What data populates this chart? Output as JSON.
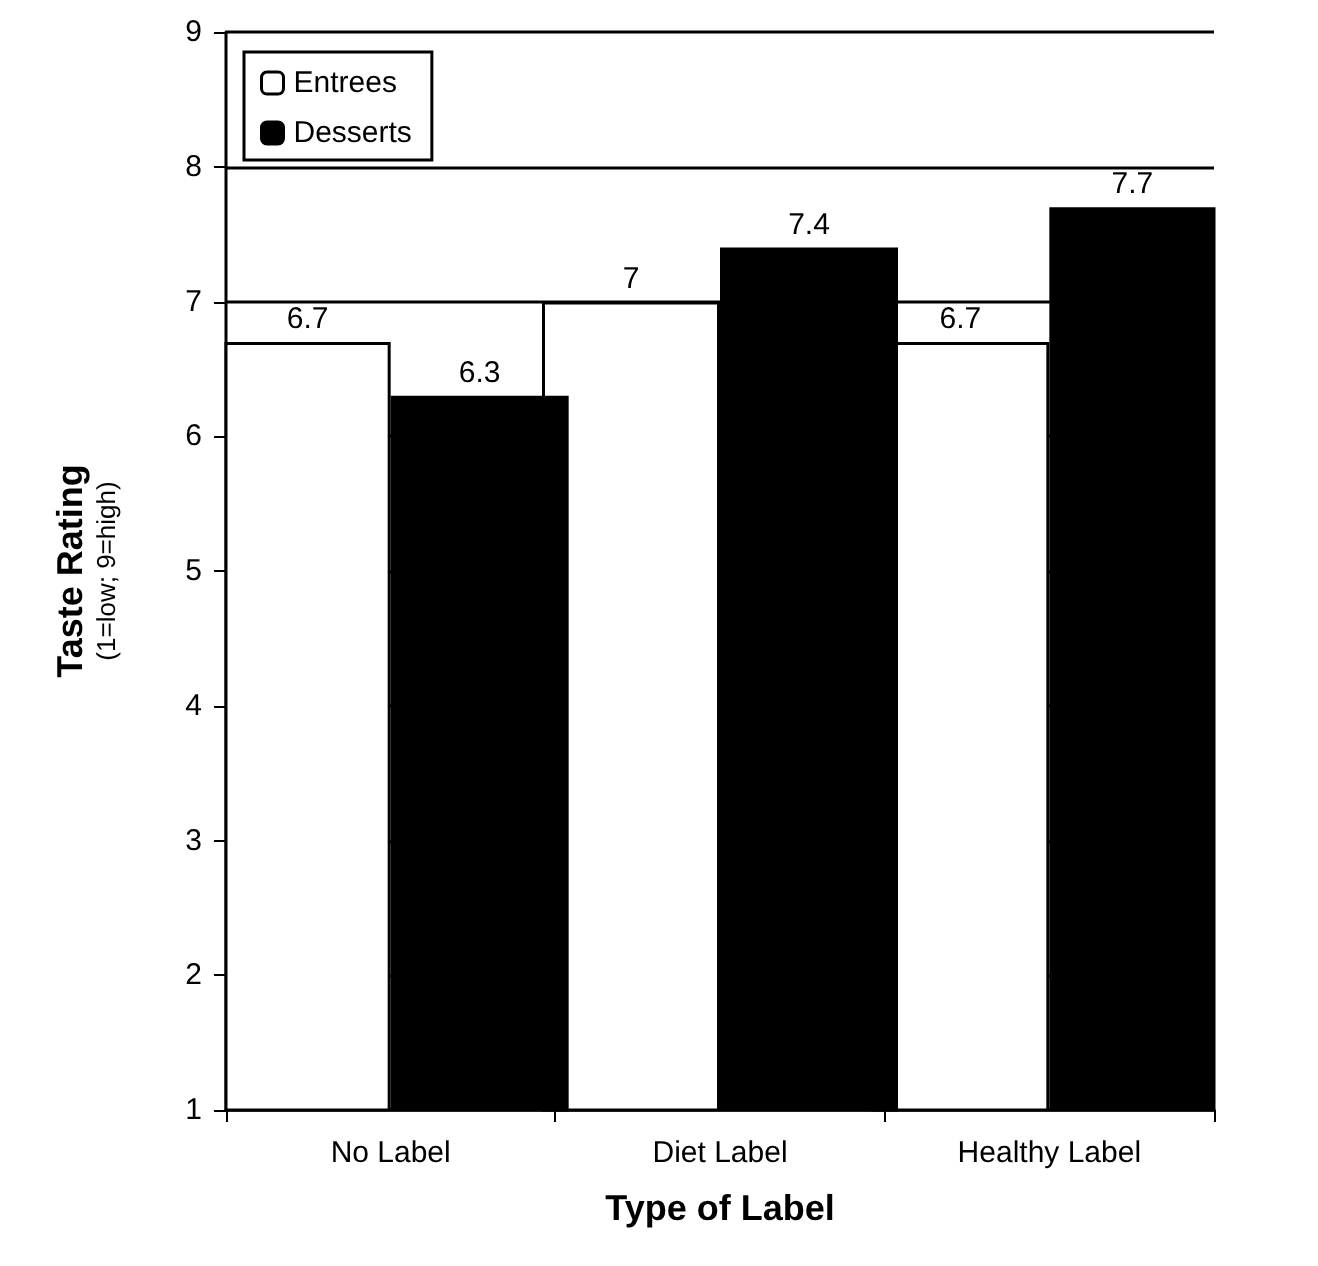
{
  "chart_data": {
    "type": "bar",
    "xlabel": "Type of Label",
    "ylabel": "Taste Rating",
    "annotations": [
      "(1=low; 9=high)"
    ],
    "categories": [
      "No Label",
      "Diet Label",
      "Healthy Label"
    ],
    "series": [
      {
        "name": "Entrees",
        "color": "#ffffff",
        "values": [
          6.7,
          7,
          6.7
        ]
      },
      {
        "name": "Desserts",
        "color": "#000000",
        "values": [
          6.3,
          7.4,
          7.7
        ]
      }
    ],
    "ylim": [
      1,
      9
    ],
    "yticks": [
      1,
      2,
      3,
      4,
      5,
      6,
      7,
      8,
      9
    ],
    "grid": "y",
    "legend": "top left",
    "data_labels": true
  }
}
